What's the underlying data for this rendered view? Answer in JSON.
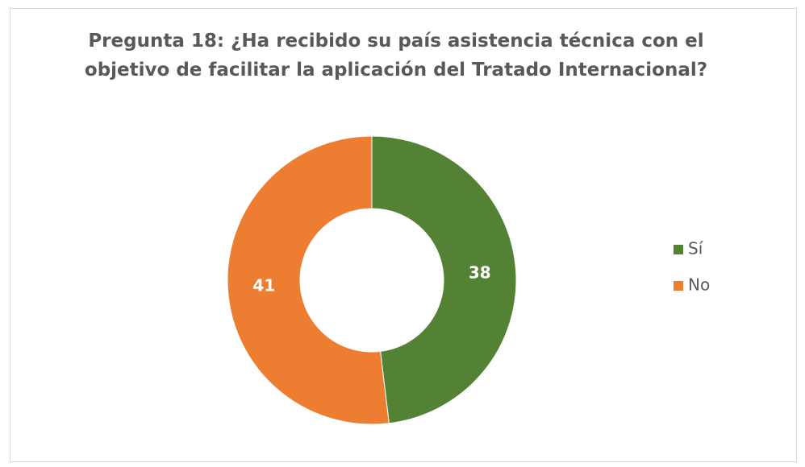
{
  "chart_data": {
    "type": "donut",
    "title": "Pregunta 18: ¿Ha recibido su país asistencia técnica con el objetivo de facilitar la aplicación del Tratado Internacional?",
    "categories": [
      "Sí",
      "No"
    ],
    "values": [
      38,
      41
    ],
    "colors": [
      "#548235",
      "#ed7d31"
    ],
    "legend": "right"
  }
}
